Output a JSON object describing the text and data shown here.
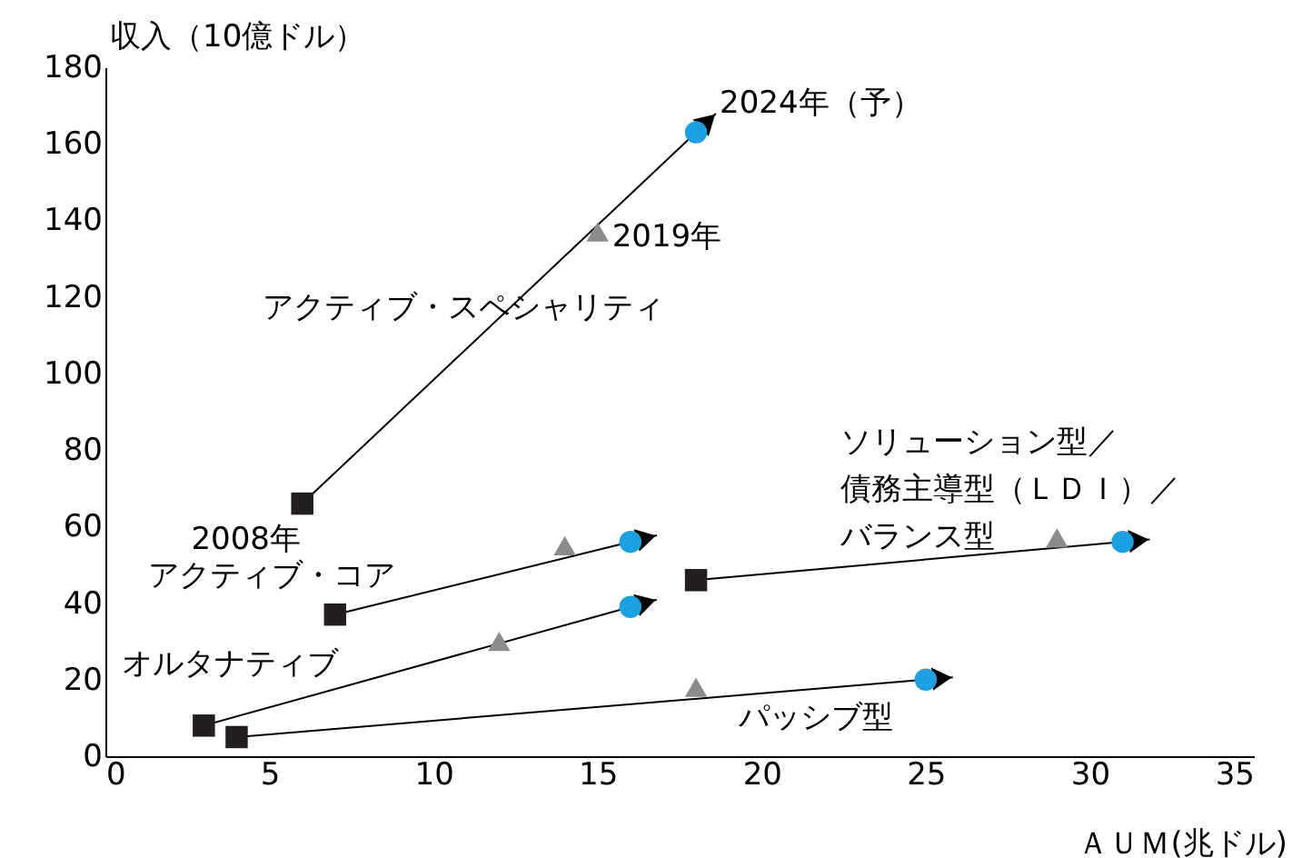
{
  "chart_data": {
    "type": "scatter",
    "xlabel": "ＡＵＭ(兆ドル)",
    "ylabel": "収入（10億ドル）",
    "xlim": [
      0,
      35
    ],
    "xticks": [
      0,
      5,
      10,
      15,
      20,
      25,
      30,
      35
    ],
    "ylim": [
      0,
      180
    ],
    "yticks": [
      0,
      20,
      40,
      60,
      80,
      100,
      120,
      140,
      160,
      180
    ],
    "grid": false,
    "series": [
      {
        "name": "2008年",
        "color": "#231f20",
        "marker": "square",
        "x": [
          6,
          7,
          3,
          4,
          18
        ],
        "values": [
          66,
          37,
          8,
          5,
          46
        ]
      },
      {
        "name": "2019年",
        "color": "#8c8c8c",
        "marker": "triangle",
        "x": [
          15,
          14,
          12,
          18,
          29
        ],
        "values": [
          137,
          55,
          30,
          18,
          57
        ]
      },
      {
        "name": "2024年（予）",
        "color": "#1ba1e2",
        "marker": "circle",
        "x": [
          18,
          16,
          16,
          25,
          31
        ],
        "values": [
          163,
          56,
          39,
          20,
          56
        ]
      }
    ],
    "annotations": [
      "アクティブ・スペシャリティ",
      "アクティブ・コア",
      "オルタナティブ",
      "パッシブ型",
      "ソリューション型／債務主導型（ＬＤＩ）／バランス型"
    ]
  }
}
